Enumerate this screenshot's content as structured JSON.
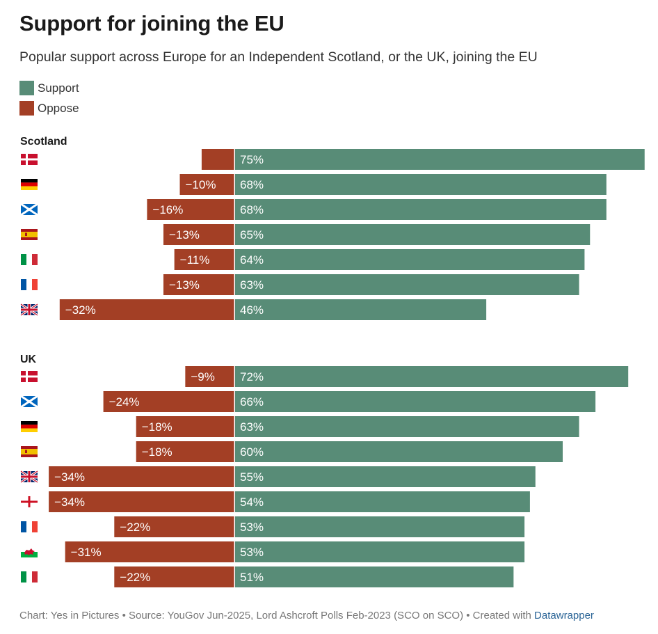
{
  "title": "Support for joining the EU",
  "subtitle": "Popular support across Europe for an Independent Scotland, or the UK, joining the EU",
  "legend": [
    {
      "label": "Support",
      "color": "#588c77"
    },
    {
      "label": "Oppose",
      "color": "#a33f25"
    }
  ],
  "footer": {
    "text": "Chart: Yes in Pictures • Source: YouGov Jun-2025, Lord Ashcroft Polls Feb-2023 (SCO on SCO) • Created with ",
    "link": "Datawrapper"
  },
  "chart_data": {
    "type": "bar",
    "orientation": "horizontal-diverging",
    "series_colors": {
      "support": "#588c77",
      "oppose": "#a33f25"
    },
    "groups": [
      {
        "title": "Scotland",
        "rows": [
          {
            "flag": "denmark-flag-icon",
            "support": 75,
            "oppose": -6,
            "support_label": "75%",
            "oppose_label": ""
          },
          {
            "flag": "germany-flag-icon",
            "support": 68,
            "oppose": -10,
            "support_label": "68%",
            "oppose_label": "−10%"
          },
          {
            "flag": "scotland-flag-icon",
            "support": 68,
            "oppose": -16,
            "support_label": "68%",
            "oppose_label": "−16%"
          },
          {
            "flag": "spain-flag-icon",
            "support": 65,
            "oppose": -13,
            "support_label": "65%",
            "oppose_label": "−13%"
          },
          {
            "flag": "italy-flag-icon",
            "support": 64,
            "oppose": -11,
            "support_label": "64%",
            "oppose_label": "−11%"
          },
          {
            "flag": "france-flag-icon",
            "support": 63,
            "oppose": -13,
            "support_label": "63%",
            "oppose_label": "−13%"
          },
          {
            "flag": "uk-flag-icon",
            "support": 46,
            "oppose": -32,
            "support_label": "46%",
            "oppose_label": "−32%"
          }
        ]
      },
      {
        "title": "UK",
        "rows": [
          {
            "flag": "denmark-flag-icon",
            "support": 72,
            "oppose": -9,
            "support_label": "72%",
            "oppose_label": "−9%"
          },
          {
            "flag": "scotland-flag-icon",
            "support": 66,
            "oppose": -24,
            "support_label": "66%",
            "oppose_label": "−24%"
          },
          {
            "flag": "germany-flag-icon",
            "support": 63,
            "oppose": -18,
            "support_label": "63%",
            "oppose_label": "−18%"
          },
          {
            "flag": "spain-flag-icon",
            "support": 60,
            "oppose": -18,
            "support_label": "60%",
            "oppose_label": "−18%"
          },
          {
            "flag": "uk-flag-icon",
            "support": 55,
            "oppose": -34,
            "support_label": "55%",
            "oppose_label": "−34%"
          },
          {
            "flag": "england-flag-icon",
            "support": 54,
            "oppose": -34,
            "support_label": "54%",
            "oppose_label": "−34%"
          },
          {
            "flag": "france-flag-icon",
            "support": 53,
            "oppose": -22,
            "support_label": "53%",
            "oppose_label": "−22%"
          },
          {
            "flag": "wales-flag-icon",
            "support": 53,
            "oppose": -31,
            "support_label": "53%",
            "oppose_label": "−31%"
          },
          {
            "flag": "italy-flag-icon",
            "support": 51,
            "oppose": -22,
            "support_label": "51%",
            "oppose_label": "−22%"
          }
        ]
      }
    ]
  }
}
